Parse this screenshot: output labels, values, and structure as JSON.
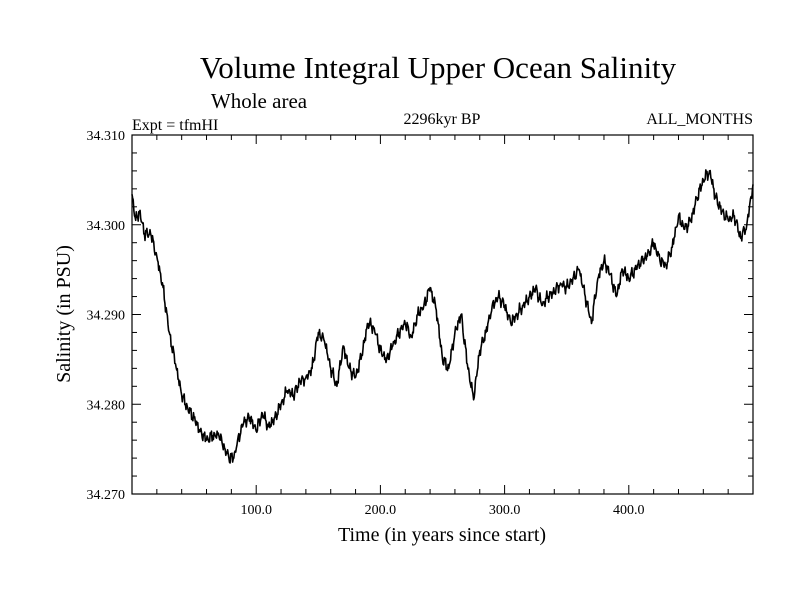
{
  "chart_data": {
    "type": "line",
    "title": "Volume Integral Upper Ocean Salinity",
    "subtitle": "Whole area",
    "left_note": "Expt = tfmHI",
    "center_note": "2296kyr BP",
    "right_note": "ALL_MONTHS",
    "xlabel": "Time (in years since start)",
    "ylabel": "Salinity (in PSU)",
    "xlim": [
      0,
      500
    ],
    "ylim": [
      34.27,
      34.31
    ],
    "xticks": [
      100,
      200,
      300,
      400
    ],
    "xtick_labels": [
      "100.0",
      "200.0",
      "300.0",
      "400.0"
    ],
    "yticks": [
      34.27,
      34.28,
      34.29,
      34.3,
      34.31
    ],
    "ytick_labels": [
      "34.270",
      "34.280",
      "34.290",
      "34.300",
      "34.310"
    ],
    "grid": false,
    "series": [
      {
        "name": "Salinity",
        "x": [
          0,
          3,
          6,
          10,
          15,
          20,
          25,
          30,
          35,
          40,
          45,
          50,
          55,
          60,
          65,
          70,
          75,
          78,
          82,
          85,
          90,
          95,
          100,
          105,
          110,
          115,
          120,
          125,
          130,
          135,
          140,
          145,
          150,
          155,
          160,
          165,
          170,
          175,
          180,
          185,
          190,
          195,
          200,
          205,
          210,
          215,
          220,
          225,
          230,
          235,
          240,
          245,
          250,
          255,
          260,
          265,
          270,
          275,
          280,
          285,
          290,
          295,
          300,
          305,
          310,
          315,
          320,
          325,
          330,
          335,
          340,
          345,
          350,
          355,
          360,
          365,
          370,
          375,
          380,
          385,
          390,
          395,
          400,
          405,
          410,
          415,
          420,
          425,
          430,
          435,
          440,
          445,
          450,
          455,
          460,
          465,
          470,
          475,
          480,
          485,
          490,
          495,
          500
        ],
        "values": [
          34.3034,
          34.3005,
          34.3015,
          34.299,
          34.299,
          34.2965,
          34.293,
          34.288,
          34.2845,
          34.281,
          34.2795,
          34.2785,
          34.277,
          34.276,
          34.2765,
          34.2765,
          34.275,
          34.274,
          34.274,
          34.276,
          34.278,
          34.2785,
          34.277,
          34.279,
          34.2775,
          34.2785,
          34.28,
          34.2815,
          34.281,
          34.2825,
          34.283,
          34.284,
          34.288,
          34.287,
          34.284,
          34.282,
          34.2865,
          34.284,
          34.283,
          34.2855,
          34.289,
          34.2885,
          34.286,
          34.285,
          34.2865,
          34.288,
          34.289,
          34.2875,
          34.29,
          34.291,
          34.293,
          34.2905,
          34.285,
          34.284,
          34.288,
          34.29,
          34.2845,
          34.2805,
          34.286,
          34.288,
          34.291,
          34.292,
          34.291,
          34.289,
          34.29,
          34.291,
          34.292,
          34.293,
          34.291,
          34.292,
          34.2925,
          34.2935,
          34.293,
          34.294,
          34.295,
          34.292,
          34.289,
          34.294,
          34.296,
          34.2945,
          34.292,
          34.295,
          34.294,
          34.295,
          34.296,
          34.2965,
          34.298,
          34.296,
          34.2955,
          34.2975,
          34.301,
          34.2995,
          34.3005,
          34.303,
          34.305,
          34.306,
          34.303,
          34.3015,
          34.3005,
          34.301,
          34.2985,
          34.3,
          34.3045
        ]
      }
    ]
  }
}
